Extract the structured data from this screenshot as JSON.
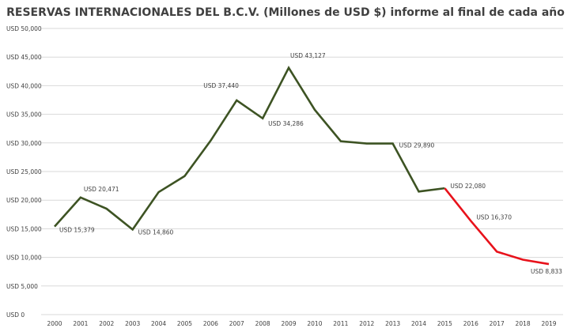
{
  "chart_data": {
    "type": "line",
    "title": "RESERVAS INTERNACIONALES DEL B.C.V. (Millones de USD $) informe al final de cada año",
    "xlabel": "",
    "ylabel": "",
    "x": [
      "2000",
      "2001",
      "2002",
      "2003",
      "2004",
      "2005",
      "2006",
      "2007",
      "2008",
      "2009",
      "2010",
      "2011",
      "2012",
      "2013",
      "2014",
      "2015",
      "2016",
      "2017",
      "2018",
      "2019"
    ],
    "values": [
      15379,
      20471,
      18500,
      14860,
      21400,
      24200,
      30400,
      37440,
      34286,
      43127,
      35800,
      30300,
      29900,
      29890,
      21500,
      22080,
      16370,
      11000,
      9600,
      8833
    ],
    "ylim": [
      0,
      50000
    ],
    "ytick_step": 5000,
    "ytick_labels": [
      "USD 0",
      "USD 5,000",
      "USD 10,000",
      "USD 15,000",
      "USD 20,000",
      "USD 25,000",
      "USD 30,000",
      "USD 35,000",
      "USD 40,000",
      "USD 45,000",
      "USD 50,000"
    ],
    "grid": true,
    "legend": "none",
    "segments": [
      {
        "from_index": 0,
        "to_index": 15,
        "color": "#3d5323"
      },
      {
        "from_index": 15,
        "to_index": 19,
        "color": "#e8121b"
      }
    ],
    "data_labels": [
      {
        "index": 0,
        "text": "USD 15,379"
      },
      {
        "index": 1,
        "text": "USD 20,471"
      },
      {
        "index": 3,
        "text": "USD 14,860"
      },
      {
        "index": 7,
        "text": "USD 37,440"
      },
      {
        "index": 8,
        "text": "USD 34,286"
      },
      {
        "index": 9,
        "text": "USD 43,127"
      },
      {
        "index": 13,
        "text": "USD 29,890"
      },
      {
        "index": 15,
        "text": "USD 22,080"
      },
      {
        "index": 16,
        "text": "USD 16,370"
      },
      {
        "index": 19,
        "text": "USD 8,833"
      }
    ],
    "colors": {
      "grid": "#d9d9d9",
      "text": "#404040"
    }
  }
}
